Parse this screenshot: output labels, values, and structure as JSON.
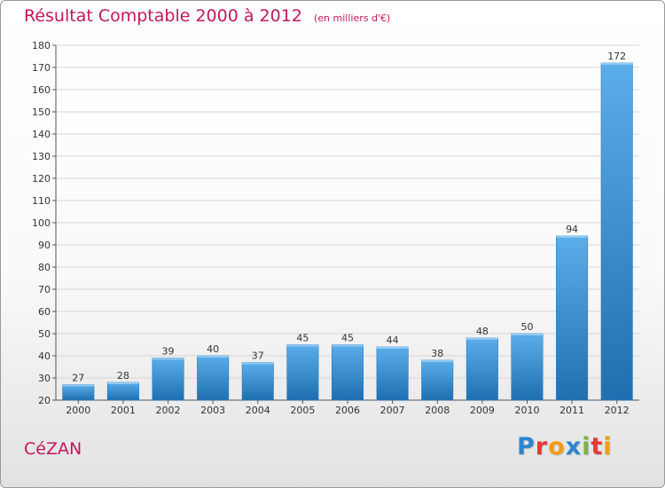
{
  "title": "Résultat Comptable 2000 à 2012",
  "unit": "(en milliers d'€)",
  "commune": "CéZAN",
  "logo": {
    "text": "Proxiti",
    "letters": [
      {
        "ch": "P",
        "color": "#2a86d1"
      },
      {
        "ch": "r",
        "color": "#e53935"
      },
      {
        "ch": "o",
        "color": "#f39c12"
      },
      {
        "ch": "x",
        "color": "#2a86d1"
      },
      {
        "ch": "i",
        "color": "#7cb342"
      },
      {
        "ch": "t",
        "color": "#e53935"
      },
      {
        "ch": "i",
        "color": "#f39c12"
      }
    ]
  },
  "colors": {
    "bar_light": "#5aaeea",
    "bar_dark": "#1f6fb0",
    "title": "#c2185b",
    "grid": "#d6d6d6"
  },
  "chart_data": {
    "type": "bar",
    "title": "Résultat Comptable 2000 à 2012",
    "subtitle": "(en milliers d'€)",
    "xlabel": "",
    "ylabel": "",
    "categories": [
      "2000",
      "2001",
      "2002",
      "2003",
      "2004",
      "2005",
      "2006",
      "2007",
      "2008",
      "2009",
      "2010",
      "2011",
      "2012"
    ],
    "values": [
      27,
      28,
      39,
      40,
      37,
      45,
      45,
      44,
      38,
      48,
      50,
      94,
      172
    ],
    "ylim": [
      20,
      180
    ],
    "yticks": [
      20,
      30,
      40,
      50,
      60,
      70,
      80,
      90,
      100,
      110,
      120,
      130,
      140,
      150,
      160,
      170,
      180
    ],
    "grid": true,
    "data_labels": true
  }
}
